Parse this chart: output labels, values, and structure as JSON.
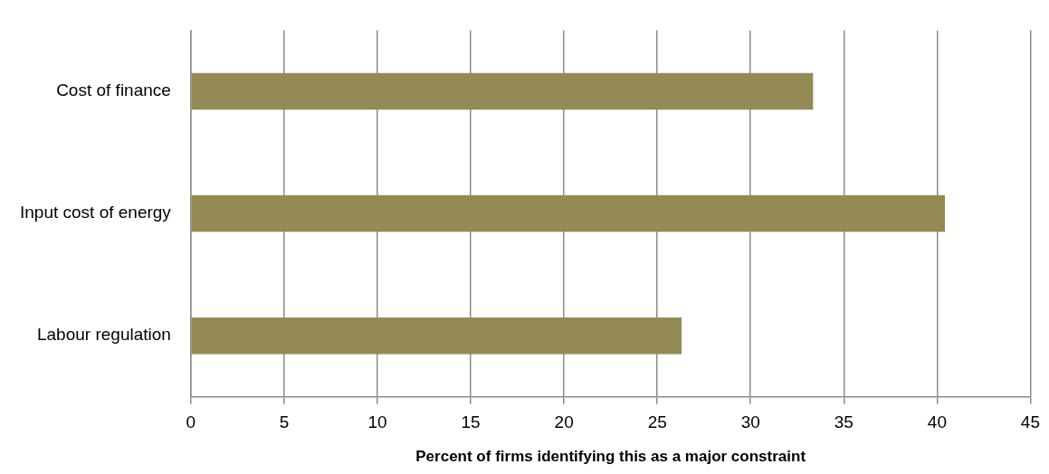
{
  "chart_data": {
    "type": "bar",
    "orientation": "horizontal",
    "xlabel": "Percent of firms identifying this as a major constraint",
    "categories": [
      "Cost of finance",
      "Input cost of energy",
      "Labour regulation"
    ],
    "values": [
      33.35,
      40.42,
      26.3
    ],
    "color": "#948a54",
    "xlim": [
      0,
      45
    ],
    "xticks": [
      0,
      5,
      10,
      15,
      20,
      25,
      30,
      35,
      40,
      45
    ],
    "grid": "x",
    "legend": false
  }
}
